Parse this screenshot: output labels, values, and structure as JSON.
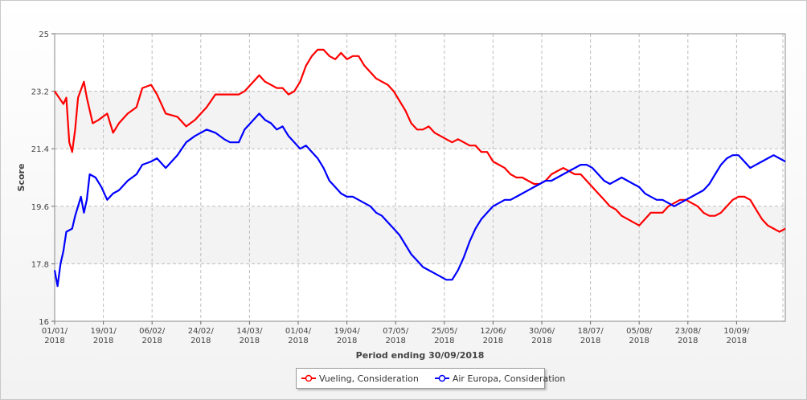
{
  "chart_data": {
    "type": "line",
    "xlabel": "Period ending 30/09/2018",
    "ylabel": "Score",
    "ylim": [
      16,
      25
    ],
    "yticks": [
      "16",
      "17.8",
      "19.6",
      "21.4",
      "23.2",
      "25"
    ],
    "xticks": [
      [
        "01/01/",
        "2018"
      ],
      [
        "19/01/",
        "2018"
      ],
      [
        "06/02/",
        "2018"
      ],
      [
        "24/02/",
        "2018"
      ],
      [
        "14/03/",
        "2018"
      ],
      [
        "01/04/",
        "2018"
      ],
      [
        "19/04/",
        "2018"
      ],
      [
        "07/05/",
        "2018"
      ],
      [
        "25/05/",
        "2018"
      ],
      [
        "12/06/",
        "2018"
      ],
      [
        "30/06/",
        "2018"
      ],
      [
        "18/07/",
        "2018"
      ],
      [
        "05/08/",
        "2018"
      ],
      [
        "23/08/",
        "2018"
      ],
      [
        "10/09/",
        "2018"
      ]
    ],
    "grid": true,
    "legend": "bottom-center",
    "series": [
      {
        "name": "Vueling, Consideration",
        "color": "#ff0000",
        "points": [
          [
            0,
            23.2
          ],
          [
            3,
            22.8
          ],
          [
            4,
            23
          ],
          [
            5,
            21.6
          ],
          [
            6,
            21.3
          ],
          [
            7,
            22
          ],
          [
            8,
            23
          ],
          [
            10,
            23.5
          ],
          [
            11,
            23
          ],
          [
            13,
            22.2
          ],
          [
            15,
            22.3
          ],
          [
            18,
            22.5
          ],
          [
            20,
            21.9
          ],
          [
            22,
            22.2
          ],
          [
            25,
            22.5
          ],
          [
            28,
            22.7
          ],
          [
            30,
            23.3
          ],
          [
            33,
            23.4
          ],
          [
            35,
            23.1
          ],
          [
            38,
            22.5
          ],
          [
            42,
            22.4
          ],
          [
            45,
            22.1
          ],
          [
            48,
            22.3
          ],
          [
            52,
            22.7
          ],
          [
            55,
            23.1
          ],
          [
            60,
            23.1
          ],
          [
            63,
            23.1
          ],
          [
            65,
            23.2
          ],
          [
            68,
            23.5
          ],
          [
            70,
            23.7
          ],
          [
            72,
            23.5
          ],
          [
            74,
            23.4
          ],
          [
            76,
            23.3
          ],
          [
            78,
            23.3
          ],
          [
            80,
            23.1
          ],
          [
            82,
            23.2
          ],
          [
            84,
            23.5
          ],
          [
            86,
            24
          ],
          [
            88,
            24.3
          ],
          [
            90,
            24.5
          ],
          [
            92,
            24.5
          ],
          [
            94,
            24.3
          ],
          [
            96,
            24.2
          ],
          [
            98,
            24.4
          ],
          [
            100,
            24.2
          ],
          [
            102,
            24.3
          ],
          [
            104,
            24.3
          ],
          [
            106,
            24
          ],
          [
            108,
            23.8
          ],
          [
            110,
            23.6
          ],
          [
            112,
            23.5
          ],
          [
            114,
            23.4
          ],
          [
            116,
            23.2
          ],
          [
            118,
            22.9
          ],
          [
            120,
            22.6
          ],
          [
            122,
            22.2
          ],
          [
            124,
            22
          ],
          [
            126,
            22
          ],
          [
            128,
            22.1
          ],
          [
            130,
            21.9
          ],
          [
            132,
            21.8
          ],
          [
            134,
            21.7
          ],
          [
            136,
            21.6
          ],
          [
            138,
            21.7
          ],
          [
            140,
            21.6
          ],
          [
            142,
            21.5
          ],
          [
            144,
            21.5
          ],
          [
            146,
            21.3
          ],
          [
            148,
            21.3
          ],
          [
            150,
            21
          ],
          [
            152,
            20.9
          ],
          [
            154,
            20.8
          ],
          [
            156,
            20.6
          ],
          [
            158,
            20.5
          ],
          [
            160,
            20.5
          ],
          [
            162,
            20.4
          ],
          [
            164,
            20.3
          ],
          [
            166,
            20.3
          ],
          [
            168,
            20.4
          ],
          [
            170,
            20.6
          ],
          [
            172,
            20.7
          ],
          [
            174,
            20.8
          ],
          [
            176,
            20.7
          ],
          [
            178,
            20.6
          ],
          [
            180,
            20.6
          ],
          [
            182,
            20.4
          ],
          [
            184,
            20.2
          ],
          [
            186,
            20
          ],
          [
            188,
            19.8
          ],
          [
            190,
            19.6
          ],
          [
            192,
            19.5
          ],
          [
            194,
            19.3
          ],
          [
            196,
            19.2
          ],
          [
            198,
            19.1
          ],
          [
            200,
            19
          ],
          [
            202,
            19.2
          ],
          [
            204,
            19.4
          ],
          [
            206,
            19.4
          ],
          [
            208,
            19.4
          ],
          [
            210,
            19.6
          ],
          [
            212,
            19.7
          ],
          [
            214,
            19.8
          ],
          [
            216,
            19.8
          ],
          [
            218,
            19.7
          ],
          [
            220,
            19.6
          ],
          [
            222,
            19.4
          ],
          [
            224,
            19.3
          ],
          [
            226,
            19.3
          ],
          [
            228,
            19.4
          ],
          [
            230,
            19.6
          ],
          [
            232,
            19.8
          ],
          [
            234,
            19.9
          ],
          [
            236,
            19.9
          ],
          [
            238,
            19.8
          ],
          [
            240,
            19.5
          ],
          [
            242,
            19.2
          ],
          [
            244,
            19
          ],
          [
            246,
            18.9
          ],
          [
            248,
            18.8
          ],
          [
            250,
            18.9
          ]
        ]
      },
      {
        "name": "Air Europa, Consideration",
        "color": "#0000ff",
        "points": [
          [
            0,
            17.6
          ],
          [
            1,
            17.1
          ],
          [
            2,
            17.8
          ],
          [
            3,
            18.2
          ],
          [
            4,
            18.8
          ],
          [
            6,
            18.9
          ],
          [
            7,
            19.3
          ],
          [
            8,
            19.6
          ],
          [
            9,
            19.9
          ],
          [
            10,
            19.4
          ],
          [
            11,
            19.8
          ],
          [
            12,
            20.6
          ],
          [
            14,
            20.5
          ],
          [
            16,
            20.2
          ],
          [
            18,
            19.8
          ],
          [
            20,
            20
          ],
          [
            22,
            20.1
          ],
          [
            25,
            20.4
          ],
          [
            28,
            20.6
          ],
          [
            30,
            20.9
          ],
          [
            33,
            21
          ],
          [
            35,
            21.1
          ],
          [
            38,
            20.8
          ],
          [
            42,
            21.2
          ],
          [
            45,
            21.6
          ],
          [
            48,
            21.8
          ],
          [
            52,
            22
          ],
          [
            55,
            21.9
          ],
          [
            58,
            21.7
          ],
          [
            60,
            21.6
          ],
          [
            63,
            21.6
          ],
          [
            65,
            22
          ],
          [
            68,
            22.3
          ],
          [
            70,
            22.5
          ],
          [
            72,
            22.3
          ],
          [
            74,
            22.2
          ],
          [
            76,
            22
          ],
          [
            78,
            22.1
          ],
          [
            80,
            21.8
          ],
          [
            82,
            21.6
          ],
          [
            84,
            21.4
          ],
          [
            86,
            21.5
          ],
          [
            88,
            21.3
          ],
          [
            90,
            21.1
          ],
          [
            92,
            20.8
          ],
          [
            94,
            20.4
          ],
          [
            96,
            20.2
          ],
          [
            98,
            20
          ],
          [
            100,
            19.9
          ],
          [
            102,
            19.9
          ],
          [
            104,
            19.8
          ],
          [
            106,
            19.7
          ],
          [
            108,
            19.6
          ],
          [
            110,
            19.4
          ],
          [
            112,
            19.3
          ],
          [
            114,
            19.1
          ],
          [
            116,
            18.9
          ],
          [
            118,
            18.7
          ],
          [
            120,
            18.4
          ],
          [
            122,
            18.1
          ],
          [
            124,
            17.9
          ],
          [
            126,
            17.7
          ],
          [
            128,
            17.6
          ],
          [
            130,
            17.5
          ],
          [
            132,
            17.4
          ],
          [
            134,
            17.3
          ],
          [
            136,
            17.3
          ],
          [
            138,
            17.6
          ],
          [
            140,
            18
          ],
          [
            142,
            18.5
          ],
          [
            144,
            18.9
          ],
          [
            146,
            19.2
          ],
          [
            148,
            19.4
          ],
          [
            150,
            19.6
          ],
          [
            152,
            19.7
          ],
          [
            154,
            19.8
          ],
          [
            156,
            19.8
          ],
          [
            158,
            19.9
          ],
          [
            160,
            20
          ],
          [
            162,
            20.1
          ],
          [
            164,
            20.2
          ],
          [
            166,
            20.3
          ],
          [
            168,
            20.4
          ],
          [
            170,
            20.4
          ],
          [
            172,
            20.5
          ],
          [
            174,
            20.6
          ],
          [
            176,
            20.7
          ],
          [
            178,
            20.8
          ],
          [
            180,
            20.9
          ],
          [
            182,
            20.9
          ],
          [
            184,
            20.8
          ],
          [
            186,
            20.6
          ],
          [
            188,
            20.4
          ],
          [
            190,
            20.3
          ],
          [
            192,
            20.4
          ],
          [
            194,
            20.5
          ],
          [
            196,
            20.4
          ],
          [
            198,
            20.3
          ],
          [
            200,
            20.2
          ],
          [
            202,
            20
          ],
          [
            204,
            19.9
          ],
          [
            206,
            19.8
          ],
          [
            208,
            19.8
          ],
          [
            210,
            19.7
          ],
          [
            212,
            19.6
          ],
          [
            214,
            19.7
          ],
          [
            216,
            19.8
          ],
          [
            218,
            19.9
          ],
          [
            220,
            20
          ],
          [
            222,
            20.1
          ],
          [
            224,
            20.3
          ],
          [
            226,
            20.6
          ],
          [
            228,
            20.9
          ],
          [
            230,
            21.1
          ],
          [
            232,
            21.2
          ],
          [
            234,
            21.2
          ],
          [
            236,
            21
          ],
          [
            238,
            20.8
          ],
          [
            240,
            20.9
          ],
          [
            242,
            21
          ],
          [
            244,
            21.1
          ],
          [
            246,
            21.2
          ],
          [
            248,
            21.1
          ],
          [
            250,
            21
          ]
        ]
      }
    ]
  }
}
